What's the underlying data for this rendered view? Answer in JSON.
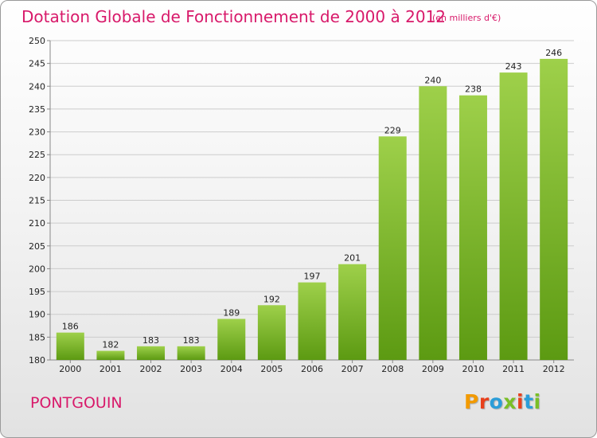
{
  "header": {
    "title": "Dotation Globale de Fonctionnement de 2000 à 2012",
    "unit": "(en milliers d'€)"
  },
  "footer": {
    "commune": "PONTGOUIN",
    "logo": "Proxiti",
    "logo_colors": [
      "#f29a00",
      "#e8401c",
      "#2b9dd8",
      "#7abf26",
      "#e8401c",
      "#2b9dd8",
      "#7abf26"
    ]
  },
  "colors": {
    "title": "#d8196a",
    "bar_top": "#9ed04a",
    "bar_bottom": "#5c9a12",
    "grid": "#cccccc"
  },
  "chart_data": {
    "type": "bar",
    "title": "Dotation Globale de Fonctionnement de 2000 à 2012",
    "subtitle": "(en milliers d'€)",
    "xlabel": "",
    "ylabel": "",
    "categories": [
      "2000",
      "2001",
      "2002",
      "2003",
      "2004",
      "2005",
      "2006",
      "2007",
      "2008",
      "2009",
      "2010",
      "2011",
      "2012"
    ],
    "values": [
      186,
      182,
      183,
      183,
      189,
      192,
      197,
      201,
      229,
      240,
      238,
      243,
      246
    ],
    "ylim": [
      180,
      250
    ],
    "yticks": [
      180,
      185,
      190,
      195,
      200,
      205,
      210,
      215,
      220,
      225,
      230,
      235,
      240,
      245,
      250
    ],
    "grid": true,
    "legend": "none"
  }
}
